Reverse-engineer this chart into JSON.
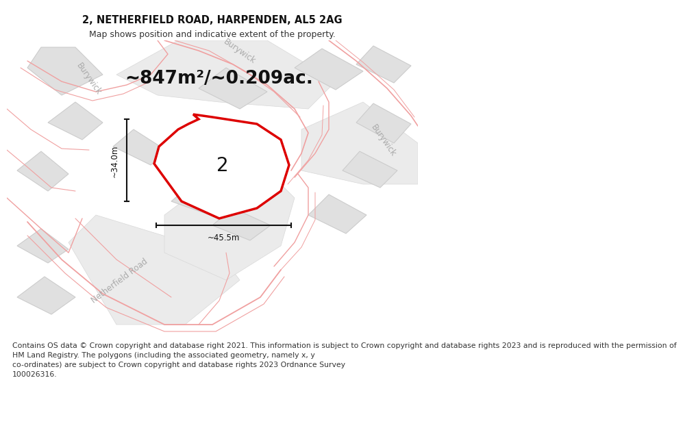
{
  "title": "2, NETHERFIELD ROAD, HARPENDEN, AL5 2AG",
  "subtitle": "Map shows position and indicative extent of the property.",
  "area_label": "~847m²/~0.209ac.",
  "plot_number": "2",
  "dim_width": "~45.5m",
  "dim_height": "~34.0m",
  "road_label_nf": "Netherfield Road",
  "road_label_bw1": "Burywick",
  "road_label_bw2": "Burywick",
  "road_label_bw3": "Burywick",
  "footer_lines": [
    "Contains OS data © Crown copyright and database right 2021. This information is subject to Crown copyright and database rights 2023 and is reproduced with the permission of",
    "HM Land Registry. The polygons (including the associated geometry, namely x, y",
    "co-ordinates) are subject to Crown copyright and database rights 2023 Ordnance Survey",
    "100026316."
  ],
  "bg_color": "#ffffff",
  "map_bg": "#ffffff",
  "block_fill": "#e0e0e0",
  "block_edge": "#cccccc",
  "road_fill": "#e8e8e8",
  "pink_road": "#f0a0a0",
  "plot_stroke": "#dd0000",
  "plot_fill": "#ffffff",
  "dim_color": "#111111",
  "label_color": "#aaaaaa",
  "title_fontsize": 10.5,
  "subtitle_fontsize": 9,
  "area_fontsize": 19,
  "plot_num_fontsize": 20,
  "road_label_fontsize": 8.5,
  "dim_fontsize": 8.5,
  "footer_fontsize": 7.8
}
